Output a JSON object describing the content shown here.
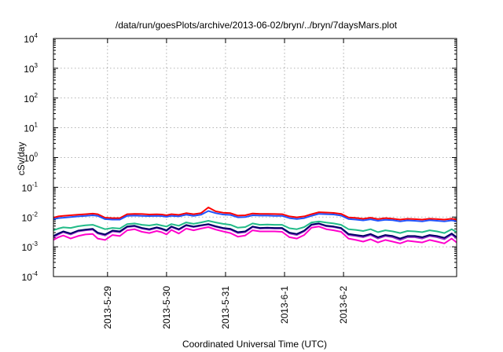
{
  "chart_data": {
    "type": "line",
    "title": "/data/run/goesPlots/archive/2013-06-02/bryn/../bryn/7daysMars.plot",
    "xlabel": "Coordinated Universal Time (UTC)",
    "ylabel": "cSv/day",
    "yscale": "log",
    "ylim": [
      0.0001,
      10000
    ],
    "y_ticks": [
      {
        "base": "10",
        "exp": "-4"
      },
      {
        "base": "10",
        "exp": "-3"
      },
      {
        "base": "10",
        "exp": "-2"
      },
      {
        "base": "10",
        "exp": "-1"
      },
      {
        "base": "10",
        "exp": "0"
      },
      {
        "base": "10",
        "exp": "1"
      },
      {
        "base": "10",
        "exp": "2"
      },
      {
        "base": "10",
        "exp": "3"
      },
      {
        "base": "10",
        "exp": "4"
      }
    ],
    "xlim": [
      "2013-05-28 02:00",
      "2013-06-03 22:00"
    ],
    "x_ticks": [
      {
        "label": "2013-5-29",
        "at": "2013-05-29"
      },
      {
        "label": "2013-5-30",
        "at": "2013-05-30"
      },
      {
        "label": "2013-5-31",
        "at": "2013-05-31"
      },
      {
        "label": "2013-6-1",
        "at": "2013-06-01"
      },
      {
        "label": "2013-6-2",
        "at": "2013-06-02"
      }
    ],
    "grid": true,
    "x": [
      "2013-05-28 02:00",
      "2013-05-28 04:00",
      "2013-05-28 06:00",
      "2013-05-28 09:00",
      "2013-05-28 12:00",
      "2013-05-28 15:00",
      "2013-05-28 18:00",
      "2013-05-28 20:00",
      "2013-05-28 23:00",
      "2013-05-29 02:00",
      "2013-05-29 05:00",
      "2013-05-29 08:00",
      "2013-05-29 11:00",
      "2013-05-29 14:00",
      "2013-05-29 17:00",
      "2013-05-29 20:00",
      "2013-05-29 22:00",
      "2013-05-30 00:00",
      "2013-05-30 02:00",
      "2013-05-30 05:00",
      "2013-05-30 08:00",
      "2013-05-30 11:00",
      "2013-05-30 14:00",
      "2013-05-30 17:00",
      "2013-05-30 20:00",
      "2013-05-30 23:00",
      "2013-05-31 02:00",
      "2013-05-31 05:00",
      "2013-05-31 08:00",
      "2013-05-31 11:00",
      "2013-05-31 14:00",
      "2013-05-31 17:00",
      "2013-05-31 20:00",
      "2013-05-31 23:00",
      "2013-06-01 02:00",
      "2013-06-01 05:00",
      "2013-06-01 08:00",
      "2013-06-01 11:00",
      "2013-06-01 14:00",
      "2013-06-01 17:00",
      "2013-06-01 20:00",
      "2013-06-01 23:00",
      "2013-06-02 02:00",
      "2013-06-02 05:00",
      "2013-06-02 08:00",
      "2013-06-02 11:00",
      "2013-06-02 14:00",
      "2013-06-02 17:00",
      "2013-06-02 20:00",
      "2013-06-02 23:00",
      "2013-06-03 02:00",
      "2013-06-03 05:00",
      "2013-06-03 08:00",
      "2013-06-03 11:00",
      "2013-06-03 14:00",
      "2013-06-03 17:00",
      "2013-06-03 20:00",
      "2013-06-03 22:00"
    ],
    "series": [
      {
        "color": "#ff0000",
        "values": [
          0.0095,
          0.0105,
          0.011,
          0.0115,
          0.012,
          0.0125,
          0.013,
          0.0125,
          0.0095,
          0.0092,
          0.0092,
          0.0125,
          0.0128,
          0.0126,
          0.0122,
          0.0124,
          0.0122,
          0.0115,
          0.0125,
          0.0118,
          0.0135,
          0.0125,
          0.0135,
          0.021,
          0.0155,
          0.014,
          0.0135,
          0.0112,
          0.0115,
          0.0132,
          0.0128,
          0.0128,
          0.0126,
          0.0125,
          0.0105,
          0.0098,
          0.0105,
          0.0125,
          0.0145,
          0.0142,
          0.0138,
          0.0128,
          0.0097,
          0.0093,
          0.0087,
          0.0095,
          0.0085,
          0.0092,
          0.0088,
          0.0082,
          0.0087,
          0.0085,
          0.0082,
          0.0088,
          0.0085,
          0.0082,
          0.0088,
          0.0082
        ]
      },
      {
        "color": "#2255ff",
        "values": [
          0.0085,
          0.0092,
          0.0095,
          0.01,
          0.0105,
          0.011,
          0.0115,
          0.011,
          0.0085,
          0.0082,
          0.0082,
          0.011,
          0.0112,
          0.011,
          0.0108,
          0.011,
          0.0108,
          0.0102,
          0.011,
          0.0105,
          0.012,
          0.011,
          0.012,
          0.016,
          0.0135,
          0.0122,
          0.0118,
          0.0098,
          0.01,
          0.0115,
          0.0112,
          0.0112,
          0.011,
          0.011,
          0.0092,
          0.0086,
          0.0092,
          0.011,
          0.0128,
          0.0125,
          0.0122,
          0.0112,
          0.0086,
          0.0082,
          0.0077,
          0.0084,
          0.0075,
          0.0081,
          0.0078,
          0.0072,
          0.0077,
          0.0075,
          0.0072,
          0.0078,
          0.0075,
          0.0072,
          0.0077,
          0.0072
        ]
      },
      {
        "color": "#22bb88",
        "values": [
          0.0036,
          0.0041,
          0.0045,
          0.0043,
          0.0049,
          0.0053,
          0.0055,
          0.0048,
          0.0039,
          0.0043,
          0.0041,
          0.0058,
          0.0061,
          0.0055,
          0.0052,
          0.0057,
          0.0052,
          0.0048,
          0.0058,
          0.0051,
          0.0066,
          0.0059,
          0.0066,
          0.0075,
          0.0066,
          0.0059,
          0.0055,
          0.0044,
          0.0046,
          0.0061,
          0.0055,
          0.0056,
          0.0055,
          0.0055,
          0.0042,
          0.0039,
          0.0046,
          0.0066,
          0.0071,
          0.0065,
          0.0061,
          0.0055,
          0.0039,
          0.0037,
          0.0034,
          0.0039,
          0.0031,
          0.0036,
          0.0033,
          0.0029,
          0.0034,
          0.0033,
          0.0031,
          0.0036,
          0.0033,
          0.0029,
          0.0039,
          0.0031
        ]
      },
      {
        "color": "#9933cc",
        "values": [
          0.0021,
          0.0026,
          0.0031,
          0.0026,
          0.0033,
          0.0036,
          0.0038,
          0.0028,
          0.0024,
          0.0033,
          0.0031,
          0.0046,
          0.0049,
          0.0041,
          0.0037,
          0.0043,
          0.0039,
          0.0034,
          0.0046,
          0.0037,
          0.0052,
          0.0046,
          0.0051,
          0.0056,
          0.0047,
          0.0041,
          0.0038,
          0.0029,
          0.0031,
          0.0046,
          0.0041,
          0.0042,
          0.0041,
          0.0041,
          0.0028,
          0.0025,
          0.0033,
          0.0054,
          0.0059,
          0.0049,
          0.0046,
          0.0041,
          0.0025,
          0.0023,
          0.0021,
          0.0025,
          0.0019,
          0.0023,
          0.0021,
          0.0017,
          0.0021,
          0.0021,
          0.0019,
          0.0023,
          0.0021,
          0.0018,
          0.0026,
          0.0019
        ]
      },
      {
        "color": "#000066",
        "values": [
          0.0023,
          0.0028,
          0.0033,
          0.0028,
          0.0035,
          0.0038,
          0.004,
          0.003,
          0.0026,
          0.0035,
          0.0033,
          0.0048,
          0.0051,
          0.0043,
          0.0039,
          0.0045,
          0.0041,
          0.0036,
          0.0048,
          0.0039,
          0.0054,
          0.0048,
          0.0053,
          0.0058,
          0.0049,
          0.0043,
          0.004,
          0.0031,
          0.0033,
          0.0048,
          0.0043,
          0.0044,
          0.0043,
          0.0043,
          0.003,
          0.0027,
          0.0035,
          0.0056,
          0.0061,
          0.0051,
          0.0048,
          0.0043,
          0.0027,
          0.0025,
          0.0023,
          0.0027,
          0.0021,
          0.0025,
          0.0023,
          0.0019,
          0.0023,
          0.0023,
          0.0021,
          0.0025,
          0.0023,
          0.002,
          0.0028,
          0.0021
        ]
      },
      {
        "color": "#ff00cc",
        "values": [
          0.0017,
          0.0021,
          0.0024,
          0.0019,
          0.0023,
          0.0026,
          0.0027,
          0.0019,
          0.0017,
          0.0025,
          0.0023,
          0.0036,
          0.0039,
          0.0032,
          0.0029,
          0.0034,
          0.0031,
          0.0026,
          0.0037,
          0.0028,
          0.0041,
          0.0036,
          0.0041,
          0.0046,
          0.0038,
          0.0033,
          0.0029,
          0.0022,
          0.0024,
          0.0036,
          0.0033,
          0.0033,
          0.0033,
          0.0032,
          0.0021,
          0.0019,
          0.0025,
          0.0044,
          0.0048,
          0.0039,
          0.0036,
          0.0032,
          0.0019,
          0.0017,
          0.0015,
          0.0018,
          0.0014,
          0.0017,
          0.0015,
          0.0013,
          0.0016,
          0.0015,
          0.0014,
          0.0017,
          0.0015,
          0.0013,
          0.0019,
          0.0014
        ]
      }
    ]
  }
}
